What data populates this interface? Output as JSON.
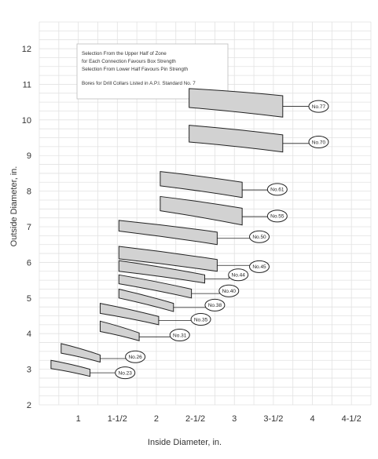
{
  "chart_data": {
    "type": "range-band",
    "xlabel": "Inside Diameter, in.",
    "ylabel": "Outside Diameter, in.",
    "xlim": [
      0.5,
      4.75
    ],
    "ylim": [
      2,
      12.75
    ],
    "x_ticks": [
      {
        "value": 1,
        "label": "1"
      },
      {
        "value": 1.5,
        "label": "1-1/2"
      },
      {
        "value": 2,
        "label": "2"
      },
      {
        "value": 2.5,
        "label": "2-1/2"
      },
      {
        "value": 3,
        "label": "3"
      },
      {
        "value": 3.5,
        "label": "3-1/2"
      },
      {
        "value": 4,
        "label": "4"
      },
      {
        "value": 4.5,
        "label": "4-1/2"
      }
    ],
    "y_ticks": [
      {
        "value": 2,
        "label": "2"
      },
      {
        "value": 3,
        "label": "3"
      },
      {
        "value": 4,
        "label": "4"
      },
      {
        "value": 5,
        "label": "5"
      },
      {
        "value": 6,
        "label": "6"
      },
      {
        "value": 7,
        "label": "7"
      },
      {
        "value": 8,
        "label": "8"
      },
      {
        "value": 9,
        "label": "9"
      },
      {
        "value": 10,
        "label": "10"
      },
      {
        "value": 11,
        "label": "11"
      },
      {
        "value": 12,
        "label": "12"
      }
    ],
    "grid": true,
    "note": [
      "Selection From the Upper Half of Zone",
      "for Each Connection Favours Box Strength",
      "Selection From Lower Half Favours Pin Strength",
      "",
      "Bores for Drill Collars Listed in A.P.I. Standard No. 7"
    ],
    "connections": [
      {
        "label": "No.23",
        "id_range": [
          0.65,
          1.15
        ],
        "od_left": [
          3.25,
          3.02
        ],
        "od_right": [
          3.0,
          2.8
        ],
        "callout": [
          1.6,
          2.9
        ]
      },
      {
        "label": "No.26",
        "id_range": [
          0.78,
          1.28
        ],
        "od_left": [
          3.72,
          3.45
        ],
        "od_right": [
          3.4,
          3.2
        ],
        "callout": [
          1.73,
          3.35
        ]
      },
      {
        "label": "No.31",
        "id_range": [
          1.28,
          1.78
        ],
        "od_left": [
          4.35,
          4.06
        ],
        "od_right": [
          4.02,
          3.8
        ],
        "callout": [
          2.3,
          3.96
        ]
      },
      {
        "label": "No.35",
        "id_range": [
          1.28,
          2.03
        ],
        "od_left": [
          4.85,
          4.57
        ],
        "od_right": [
          4.48,
          4.25
        ],
        "callout": [
          2.57,
          4.4
        ]
      },
      {
        "label": "No.38",
        "id_range": [
          1.52,
          2.22
        ],
        "od_left": [
          5.25,
          5.0
        ],
        "od_right": [
          4.85,
          4.62
        ],
        "callout": [
          2.75,
          4.8
        ]
      },
      {
        "label": "No.40",
        "id_range": [
          1.52,
          2.45
        ],
        "od_left": [
          5.65,
          5.4
        ],
        "od_right": [
          5.25,
          5.0
        ],
        "callout": [
          2.93,
          5.2
        ]
      },
      {
        "label": "No.44",
        "id_range": [
          1.52,
          2.62
        ],
        "od_left": [
          6.05,
          5.75
        ],
        "od_right": [
          5.65,
          5.42
        ],
        "callout": [
          3.05,
          5.65
        ]
      },
      {
        "label": "No.45",
        "id_range": [
          1.52,
          2.78
        ],
        "od_left": [
          6.45,
          6.1
        ],
        "od_right": [
          6.08,
          5.75
        ],
        "callout": [
          3.32,
          5.88
        ]
      },
      {
        "label": "No.50",
        "id_range": [
          1.52,
          2.78
        ],
        "od_left": [
          7.18,
          6.88
        ],
        "od_right": [
          6.85,
          6.5
        ],
        "callout": [
          3.32,
          6.72
        ]
      },
      {
        "label": "No.55",
        "id_range": [
          2.05,
          3.1
        ],
        "od_left": [
          7.85,
          7.45
        ],
        "od_right": [
          7.52,
          7.05
        ],
        "callout": [
          3.55,
          7.3
        ]
      },
      {
        "label": "No.61",
        "id_range": [
          2.05,
          3.1
        ],
        "od_left": [
          8.55,
          8.15
        ],
        "od_right": [
          8.25,
          7.82
        ],
        "callout": [
          3.55,
          8.05
        ]
      },
      {
        "label": "No.70",
        "id_range": [
          2.42,
          3.62
        ],
        "od_left": [
          9.85,
          9.38
        ],
        "od_right": [
          9.58,
          9.1
        ],
        "callout": [
          4.08,
          9.38
        ]
      },
      {
        "label": "No.77",
        "id_range": [
          2.42,
          3.62
        ],
        "od_left": [
          10.88,
          10.35
        ],
        "od_right": [
          10.68,
          10.08
        ],
        "callout": [
          4.08,
          10.38
        ]
      }
    ]
  },
  "colors": {
    "band_fill": "#d2d2d2",
    "band_stroke": "#222222",
    "grid": "#e2e2e2",
    "text": "#333333"
  }
}
